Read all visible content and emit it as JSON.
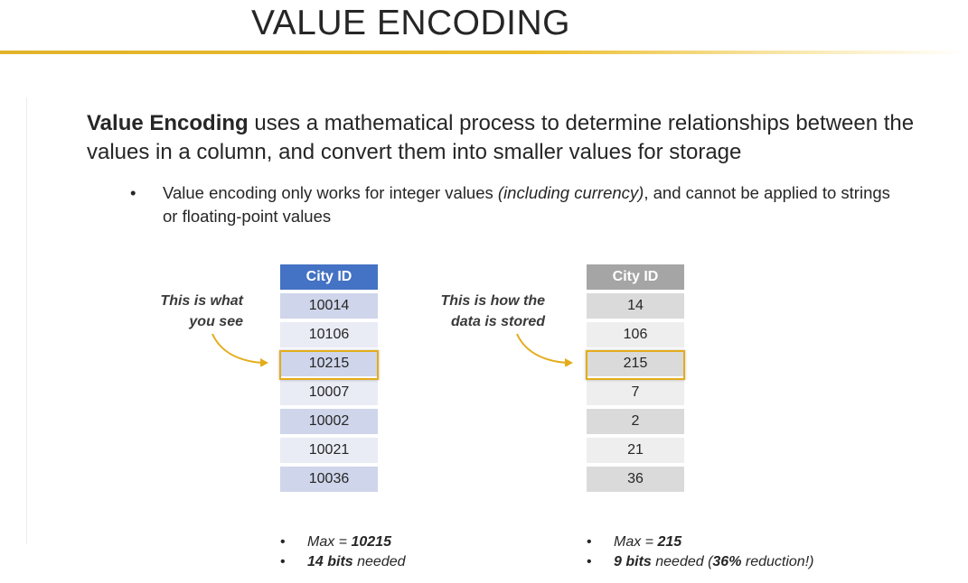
{
  "slide": {
    "title": "VALUE ENCODING",
    "lead_bold": "Value Encoding",
    "lead_rest": " uses a mathematical process to determine relationships between the values in a column, and convert them into smaller values for storage",
    "bullet": {
      "text_before": "Value encoding only works for integer values ",
      "text_italic": "(including currency)",
      "text_after": ", and cannot be applied to strings or floating-point values"
    }
  },
  "left_panel": {
    "annotation_line1": "This is what",
    "annotation_line2": "you see",
    "header": "City ID",
    "rows": [
      "10014",
      "10106",
      "10215",
      "10007",
      "10002",
      "10021",
      "10036"
    ],
    "highlight_row": 2,
    "stats": {
      "max_label": "Max = ",
      "max_value": "10215",
      "bits_value": "14 bits",
      "bits_label": " needed"
    }
  },
  "right_panel": {
    "annotation_line1": "This is how the",
    "annotation_line2": "data is stored",
    "header": "City ID",
    "rows": [
      "14",
      "106",
      "215",
      "7",
      "2",
      "21",
      "36"
    ],
    "highlight_row": 2,
    "stats": {
      "max_label": "Max = ",
      "max_value": "215",
      "bits_value": "9 bits",
      "bits_label": " needed (",
      "reduction_value": "36%",
      "reduction_label": " reduction!)"
    }
  },
  "colors": {
    "accent_gold": "#e3ac1b",
    "left_header": "#4472c4",
    "right_header": "#a5a5a5"
  }
}
